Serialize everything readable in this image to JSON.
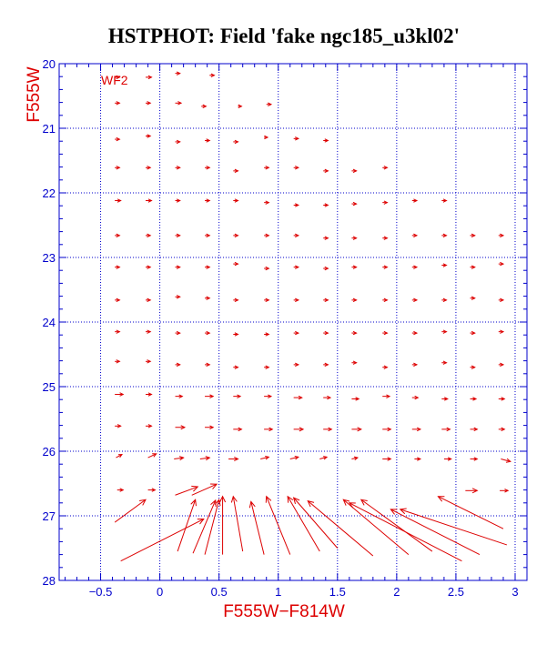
{
  "chart_data": {
    "type": "quiver",
    "title": "HSTPHOT: Field 'fake ngc185_u3kl02'",
    "xlabel": "F555W−F814W",
    "ylabel": "F555W",
    "panel_label": "WF2",
    "xlim": [
      -0.85,
      3.1
    ],
    "ylim": [
      28,
      20
    ],
    "y_inverted": true,
    "xticks": [
      -0.5,
      0,
      0.5,
      1,
      1.5,
      2,
      2.5,
      3
    ],
    "xtick_labels": [
      "−0.5",
      "0",
      "0.5",
      "1",
      "1.5",
      "2",
      "2.5",
      "3"
    ],
    "yticks": [
      20,
      21,
      22,
      23,
      24,
      25,
      26,
      27,
      28
    ],
    "ytick_labels": [
      "20",
      "21",
      "22",
      "23",
      "24",
      "25",
      "26",
      "27",
      "28"
    ],
    "grid": true,
    "colors": {
      "axes": "#0000cc",
      "vectors": "#dd0000",
      "labels": "#dd0000",
      "title": "#000000"
    },
    "vectors_note_fields": [
      "x",
      "y",
      "dx",
      "dy"
    ],
    "vectors": [
      [
        -0.38,
        20.21,
        0.04,
        0.0
      ],
      [
        -0.12,
        20.21,
        0.05,
        0.0
      ],
      [
        0.13,
        20.15,
        0.04,
        0.0
      ],
      [
        0.42,
        20.18,
        0.04,
        0.0
      ],
      [
        -0.38,
        20.61,
        0.04,
        0.0
      ],
      [
        -0.12,
        20.61,
        0.04,
        0.0
      ],
      [
        0.13,
        20.61,
        0.05,
        0.0
      ],
      [
        0.35,
        20.66,
        0.04,
        0.0
      ],
      [
        0.66,
        20.66,
        0.03,
        0.0
      ],
      [
        0.9,
        20.63,
        0.04,
        0.0
      ],
      [
        -0.38,
        21.17,
        0.04,
        0.0
      ],
      [
        -0.12,
        21.12,
        0.04,
        0.0
      ],
      [
        0.13,
        21.21,
        0.04,
        0.0
      ],
      [
        0.38,
        21.19,
        0.04,
        0.0
      ],
      [
        0.62,
        21.21,
        0.04,
        0.0
      ],
      [
        0.88,
        21.14,
        0.03,
        0.0
      ],
      [
        1.13,
        21.16,
        0.04,
        0.0
      ],
      [
        1.38,
        21.19,
        0.04,
        0.0
      ],
      [
        -0.38,
        21.61,
        0.04,
        0.0
      ],
      [
        -0.12,
        21.61,
        0.04,
        0.0
      ],
      [
        0.13,
        21.61,
        0.04,
        0.0
      ],
      [
        0.38,
        21.61,
        0.04,
        0.0
      ],
      [
        0.62,
        21.66,
        0.04,
        0.0
      ],
      [
        0.88,
        21.61,
        0.04,
        0.0
      ],
      [
        1.13,
        21.61,
        0.04,
        0.0
      ],
      [
        1.38,
        21.66,
        0.04,
        0.0
      ],
      [
        1.62,
        21.66,
        0.04,
        0.0
      ],
      [
        1.88,
        21.61,
        0.04,
        0.0
      ],
      [
        -0.38,
        22.12,
        0.05,
        0.0
      ],
      [
        -0.12,
        22.12,
        0.05,
        0.0
      ],
      [
        0.13,
        22.12,
        0.04,
        0.0
      ],
      [
        0.38,
        22.12,
        0.04,
        0.0
      ],
      [
        0.62,
        22.12,
        0.04,
        0.0
      ],
      [
        0.88,
        22.15,
        0.04,
        0.0
      ],
      [
        1.13,
        22.19,
        0.04,
        0.0
      ],
      [
        1.38,
        22.19,
        0.04,
        0.0
      ],
      [
        1.62,
        22.17,
        0.04,
        0.0
      ],
      [
        1.88,
        22.15,
        0.04,
        0.0
      ],
      [
        2.13,
        22.12,
        0.04,
        0.0
      ],
      [
        2.38,
        22.12,
        0.04,
        0.0
      ],
      [
        -0.38,
        22.66,
        0.04,
        0.0
      ],
      [
        -0.12,
        22.66,
        0.04,
        0.0
      ],
      [
        0.13,
        22.66,
        0.04,
        0.0
      ],
      [
        0.38,
        22.66,
        0.04,
        0.0
      ],
      [
        0.62,
        22.66,
        0.04,
        0.0
      ],
      [
        0.88,
        22.66,
        0.04,
        0.0
      ],
      [
        1.13,
        22.66,
        0.04,
        0.0
      ],
      [
        1.38,
        22.7,
        0.04,
        0.0
      ],
      [
        1.62,
        22.7,
        0.04,
        0.0
      ],
      [
        1.88,
        22.7,
        0.04,
        0.0
      ],
      [
        2.13,
        22.66,
        0.04,
        0.0
      ],
      [
        2.38,
        22.66,
        0.04,
        0.0
      ],
      [
        2.62,
        22.66,
        0.04,
        0.0
      ],
      [
        2.86,
        22.66,
        0.04,
        0.0
      ],
      [
        -0.38,
        23.15,
        0.04,
        0.0
      ],
      [
        -0.12,
        23.15,
        0.04,
        0.0
      ],
      [
        0.13,
        23.15,
        0.04,
        0.0
      ],
      [
        0.38,
        23.15,
        0.04,
        0.0
      ],
      [
        0.62,
        23.1,
        0.04,
        0.0
      ],
      [
        0.88,
        23.17,
        0.04,
        0.0
      ],
      [
        1.13,
        23.15,
        0.04,
        0.0
      ],
      [
        1.38,
        23.17,
        0.04,
        0.0
      ],
      [
        1.62,
        23.15,
        0.04,
        0.0
      ],
      [
        1.88,
        23.15,
        0.04,
        0.0
      ],
      [
        2.13,
        23.15,
        0.04,
        0.0
      ],
      [
        2.38,
        23.12,
        0.04,
        0.0
      ],
      [
        2.62,
        23.15,
        0.04,
        0.0
      ],
      [
        2.86,
        23.1,
        0.04,
        0.0
      ],
      [
        -0.38,
        23.66,
        0.04,
        0.0
      ],
      [
        -0.12,
        23.66,
        0.04,
        0.0
      ],
      [
        0.13,
        23.61,
        0.04,
        0.0
      ],
      [
        0.38,
        23.63,
        0.04,
        0.0
      ],
      [
        0.62,
        23.66,
        0.04,
        0.0
      ],
      [
        0.88,
        23.66,
        0.04,
        0.0
      ],
      [
        1.13,
        23.66,
        0.04,
        0.0
      ],
      [
        1.38,
        23.66,
        0.04,
        0.0
      ],
      [
        1.62,
        23.66,
        0.04,
        0.0
      ],
      [
        1.88,
        23.66,
        0.04,
        0.0
      ],
      [
        2.13,
        23.66,
        0.04,
        0.0
      ],
      [
        2.38,
        23.66,
        0.04,
        0.0
      ],
      [
        2.62,
        23.63,
        0.04,
        0.0
      ],
      [
        2.86,
        23.66,
        0.04,
        0.0
      ],
      [
        -0.38,
        24.15,
        0.04,
        0.0
      ],
      [
        -0.12,
        24.15,
        0.04,
        0.0
      ],
      [
        0.13,
        24.17,
        0.04,
        0.0
      ],
      [
        0.38,
        24.17,
        0.04,
        0.0
      ],
      [
        0.62,
        24.19,
        0.04,
        0.0
      ],
      [
        0.88,
        24.19,
        0.04,
        0.0
      ],
      [
        1.13,
        24.17,
        0.04,
        0.0
      ],
      [
        1.38,
        24.17,
        0.04,
        0.0
      ],
      [
        1.62,
        24.17,
        0.04,
        0.0
      ],
      [
        1.88,
        24.17,
        0.04,
        0.0
      ],
      [
        2.13,
        24.17,
        0.04,
        0.0
      ],
      [
        2.38,
        24.15,
        0.04,
        0.0
      ],
      [
        2.62,
        24.17,
        0.04,
        0.0
      ],
      [
        2.86,
        24.15,
        0.04,
        0.0
      ],
      [
        -0.38,
        24.61,
        0.04,
        0.0
      ],
      [
        -0.12,
        24.61,
        0.04,
        0.0
      ],
      [
        0.13,
        24.66,
        0.04,
        0.0
      ],
      [
        0.38,
        24.66,
        0.04,
        0.0
      ],
      [
        0.62,
        24.7,
        0.04,
        0.0
      ],
      [
        0.88,
        24.7,
        0.04,
        0.0
      ],
      [
        1.13,
        24.66,
        0.04,
        0.0
      ],
      [
        1.38,
        24.66,
        0.04,
        0.0
      ],
      [
        1.62,
        24.63,
        0.04,
        0.0
      ],
      [
        1.88,
        24.7,
        0.04,
        0.0
      ],
      [
        2.13,
        24.66,
        0.04,
        0.0
      ],
      [
        2.38,
        24.63,
        0.04,
        0.0
      ],
      [
        2.62,
        24.7,
        0.04,
        0.0
      ],
      [
        2.86,
        24.66,
        0.04,
        0.0
      ],
      [
        -0.38,
        25.12,
        0.07,
        0.0
      ],
      [
        -0.12,
        25.12,
        0.05,
        0.0
      ],
      [
        0.13,
        25.15,
        0.06,
        0.0
      ],
      [
        0.38,
        25.15,
        0.07,
        0.0
      ],
      [
        0.62,
        25.15,
        0.06,
        0.0
      ],
      [
        0.88,
        25.15,
        0.06,
        0.0
      ],
      [
        1.13,
        25.17,
        0.07,
        0.0
      ],
      [
        1.38,
        25.17,
        0.06,
        0.0
      ],
      [
        1.62,
        25.19,
        0.06,
        0.0
      ],
      [
        1.88,
        25.15,
        0.06,
        0.0
      ],
      [
        2.13,
        25.17,
        0.05,
        0.0
      ],
      [
        2.38,
        25.19,
        0.05,
        0.0
      ],
      [
        2.62,
        25.19,
        0.05,
        0.0
      ],
      [
        2.86,
        25.19,
        0.05,
        0.0
      ],
      [
        -0.38,
        25.61,
        0.05,
        0.0
      ],
      [
        -0.12,
        25.61,
        0.05,
        0.0
      ],
      [
        0.13,
        25.63,
        0.08,
        0.0
      ],
      [
        0.38,
        25.63,
        0.07,
        0.0
      ],
      [
        0.62,
        25.66,
        0.07,
        0.0
      ],
      [
        0.88,
        25.66,
        0.07,
        0.0
      ],
      [
        1.13,
        25.66,
        0.08,
        0.0
      ],
      [
        1.38,
        25.66,
        0.07,
        0.0
      ],
      [
        1.62,
        25.66,
        0.08,
        0.0
      ],
      [
        1.88,
        25.66,
        0.07,
        0.0
      ],
      [
        2.13,
        25.66,
        0.07,
        0.0
      ],
      [
        2.38,
        25.66,
        0.07,
        0.0
      ],
      [
        2.62,
        25.66,
        0.06,
        0.0
      ],
      [
        2.86,
        25.66,
        0.05,
        0.0
      ]
    ],
    "long_vectors": [
      [
        -0.38,
        27.1,
        0.26,
        -0.35
      ],
      [
        -0.33,
        27.7,
        0.7,
        -0.65
      ],
      [
        0.15,
        27.55,
        0.15,
        -0.8
      ],
      [
        0.28,
        27.58,
        0.19,
        -0.82
      ],
      [
        0.38,
        27.6,
        0.12,
        -0.85
      ],
      [
        0.53,
        27.6,
        0.0,
        -0.9
      ],
      [
        0.7,
        27.55,
        -0.08,
        -0.85
      ],
      [
        0.88,
        27.6,
        -0.11,
        -0.82
      ],
      [
        1.1,
        27.6,
        -0.2,
        -0.9
      ],
      [
        1.35,
        27.55,
        -0.27,
        -0.85
      ],
      [
        1.5,
        27.5,
        -0.37,
        -0.78
      ],
      [
        1.8,
        27.62,
        -0.55,
        -0.85
      ],
      [
        2.1,
        27.6,
        -0.55,
        -0.85
      ],
      [
        2.3,
        27.55,
        -0.6,
        -0.8
      ],
      [
        2.55,
        27.7,
        -0.95,
        -0.9
      ],
      [
        2.7,
        27.6,
        -0.75,
        -0.7
      ],
      [
        2.93,
        27.45,
        -0.9,
        -0.55
      ],
      [
        2.9,
        27.2,
        -0.55,
        -0.5
      ]
    ],
    "arrow_rows_short": [
      [
        -0.1,
        26.1,
        0.07,
        -0.06
      ],
      [
        0.12,
        26.12,
        0.08,
        -0.02
      ],
      [
        0.34,
        26.12,
        0.08,
        -0.02
      ],
      [
        0.58,
        26.12,
        0.08,
        0.0
      ],
      [
        0.85,
        26.12,
        0.07,
        -0.03
      ],
      [
        1.1,
        26.12,
        0.07,
        -0.03
      ],
      [
        1.35,
        26.12,
        0.06,
        -0.03
      ],
      [
        1.62,
        26.12,
        0.05,
        -0.02
      ],
      [
        1.88,
        26.12,
        0.07,
        0.0
      ],
      [
        2.15,
        26.12,
        0.05,
        0.0
      ],
      [
        2.4,
        26.12,
        0.06,
        0.0
      ],
      [
        2.62,
        26.12,
        0.06,
        0.0
      ],
      [
        2.88,
        26.12,
        0.08,
        0.04
      ],
      [
        -0.37,
        26.1,
        0.05,
        -0.05
      ],
      [
        -0.36,
        26.6,
        0.05,
        0.0
      ],
      [
        -0.1,
        26.6,
        0.06,
        0.0
      ],
      [
        0.13,
        26.68,
        0.19,
        -0.13
      ],
      [
        0.27,
        26.68,
        0.21,
        -0.17
      ],
      [
        2.58,
        26.61,
        0.1,
        0.0
      ],
      [
        2.87,
        26.61,
        0.07,
        0.0
      ]
    ]
  }
}
